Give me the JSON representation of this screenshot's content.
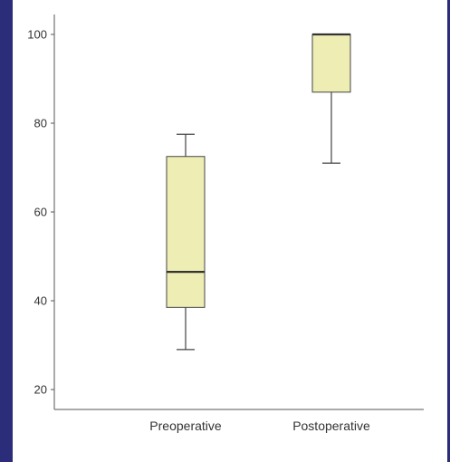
{
  "chart_data": {
    "type": "boxplot",
    "title": "",
    "xlabel": "",
    "ylabel": "",
    "ylim": [
      17,
      104
    ],
    "yticks": [
      20,
      40,
      60,
      80,
      100
    ],
    "ytick_labels": [
      "20",
      "40",
      "60",
      "80",
      "100"
    ],
    "categories": [
      "Preoperative",
      "Postoperative"
    ],
    "boxes": [
      {
        "label": "Preoperative",
        "whisker_low": 29,
        "q1": 38.5,
        "median": 46.5,
        "q3": 72.5,
        "whisker_high": 77.5
      },
      {
        "label": "Postoperative",
        "whisker_low": 71,
        "q1": 87,
        "median": 100,
        "q3": 100,
        "whisker_high": 100
      }
    ],
    "grid": false,
    "legend": "none",
    "colors": {
      "box_fill": "#eeeeb4",
      "box_stroke": "#444444",
      "median": "#333333",
      "axis": "#555555",
      "frame": "#2b2d7a"
    }
  }
}
